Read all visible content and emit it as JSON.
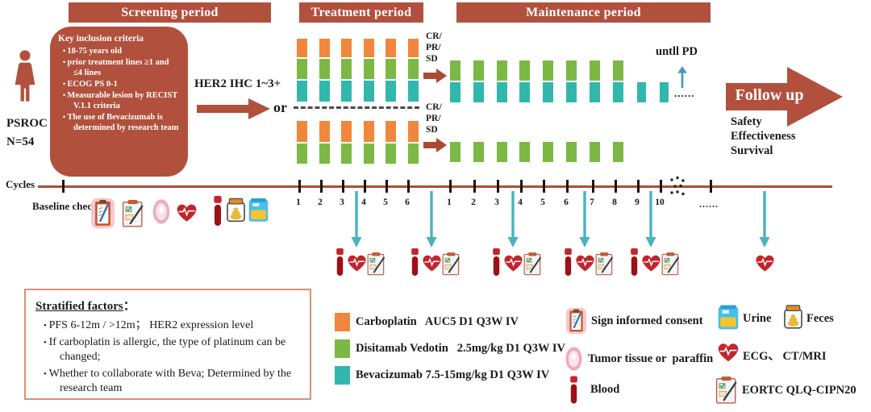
{
  "periods": {
    "screening": "Screening period",
    "treatment": "Treatment period",
    "maintenance": "Maintenance  period"
  },
  "population": {
    "cohort": "PSROC",
    "n": "N=54"
  },
  "inclusion": {
    "title": "Key inclusion criteria",
    "items": [
      "18-75 years old",
      "prior treatment lines ≥1 and ≤4 lines",
      "ECOG PS 0-1",
      "Measurable lesion by RECIST V.1.1 criteria",
      "The use of Bevacizumab is determined by research team"
    ]
  },
  "her2": {
    "label": "HER2 IHC 1~3+",
    "or_label": "or"
  },
  "response": {
    "lines": [
      "CR/",
      "PR/",
      "SD"
    ]
  },
  "treatment": {
    "arms": [
      {
        "cycles": 6,
        "drugs": [
          "carboplatin",
          "disitamab",
          "bevacizumab"
        ]
      },
      {
        "cycles": 6,
        "drugs": [
          "carboplatin",
          "disitamab"
        ]
      }
    ]
  },
  "maintenance": {
    "arms": [
      {
        "cycles": 8,
        "drugs": [
          "disitamab",
          "bevacizumab"
        ],
        "extra_cycles": 2,
        "extra_drug": "bevacizumab"
      },
      {
        "cycles": 8,
        "drugs": [
          "disitamab"
        ]
      }
    ],
    "until_label": "untll PD",
    "ellipsis": "......"
  },
  "followup": {
    "label": "Follow up",
    "outcomes": [
      "Safety",
      "Effectiveness",
      "Survival"
    ]
  },
  "timeline": {
    "cycles_label": "Cycles",
    "baseline_label": "Baseline check",
    "treatment_ticks": [
      "1",
      "2",
      "3",
      "4",
      "5",
      "6"
    ],
    "maintenance_ticks": [
      "1",
      "2",
      "3",
      "4",
      "5",
      "6",
      "7",
      "8",
      "9",
      "10"
    ],
    "ellipsis": "......"
  },
  "baseline_icons": [
    "consent",
    "eortc",
    "tumor",
    "ecg",
    "blood",
    "feces",
    "urine"
  ],
  "assessments": {
    "cycle_icons": [
      "blood",
      "ecg",
      "eortc"
    ],
    "followup_icons": [
      "ecg"
    ]
  },
  "drug_colors": {
    "carboplatin": "#F0873C",
    "disitamab": "#7BB844",
    "bevacizumab": "#31B7AE"
  },
  "drug_legend": [
    {
      "drug": "carboplatin",
      "label": "Carboplatin   AUC5 D1 Q3W IV"
    },
    {
      "drug": "disitamab",
      "label": "Disitamab Vedotin   2.5mg/kg D1 Q3W IV"
    },
    {
      "drug": "bevacizumab",
      "label": "Bevacizumab 7.5-15mg/kg D1 Q3W IV"
    }
  ],
  "stratified": {
    "title": "Stratified factors",
    "colon": "：",
    "items": [
      "PFS 6-12m / >12m；  HER2 expression level",
      "If carboplatin is allergic, the type of platinum can be changed;",
      "Whether to collaborate with Beva; Determined by the research team"
    ]
  },
  "icon_legend": [
    {
      "icon": "consent",
      "label": "Sign informed consent"
    },
    {
      "icon": "tumor",
      "label": "Tumor tissue or  paraffin"
    },
    {
      "icon": "blood",
      "label": "Blood"
    },
    {
      "icon": "urine",
      "label": "Urine"
    },
    {
      "icon": "feces",
      "label": "Feces"
    },
    {
      "icon": "ecg",
      "label": "ECG、 CT/MRI"
    },
    {
      "icon": "eortc",
      "label": "EORTC QLQ-CIPN20"
    }
  ],
  "colors": {
    "banner": "#B1513D",
    "timeline_line": "#A8503A",
    "assessment_arrow": "#49B2C2",
    "response_arrow": "#A94A30"
  }
}
